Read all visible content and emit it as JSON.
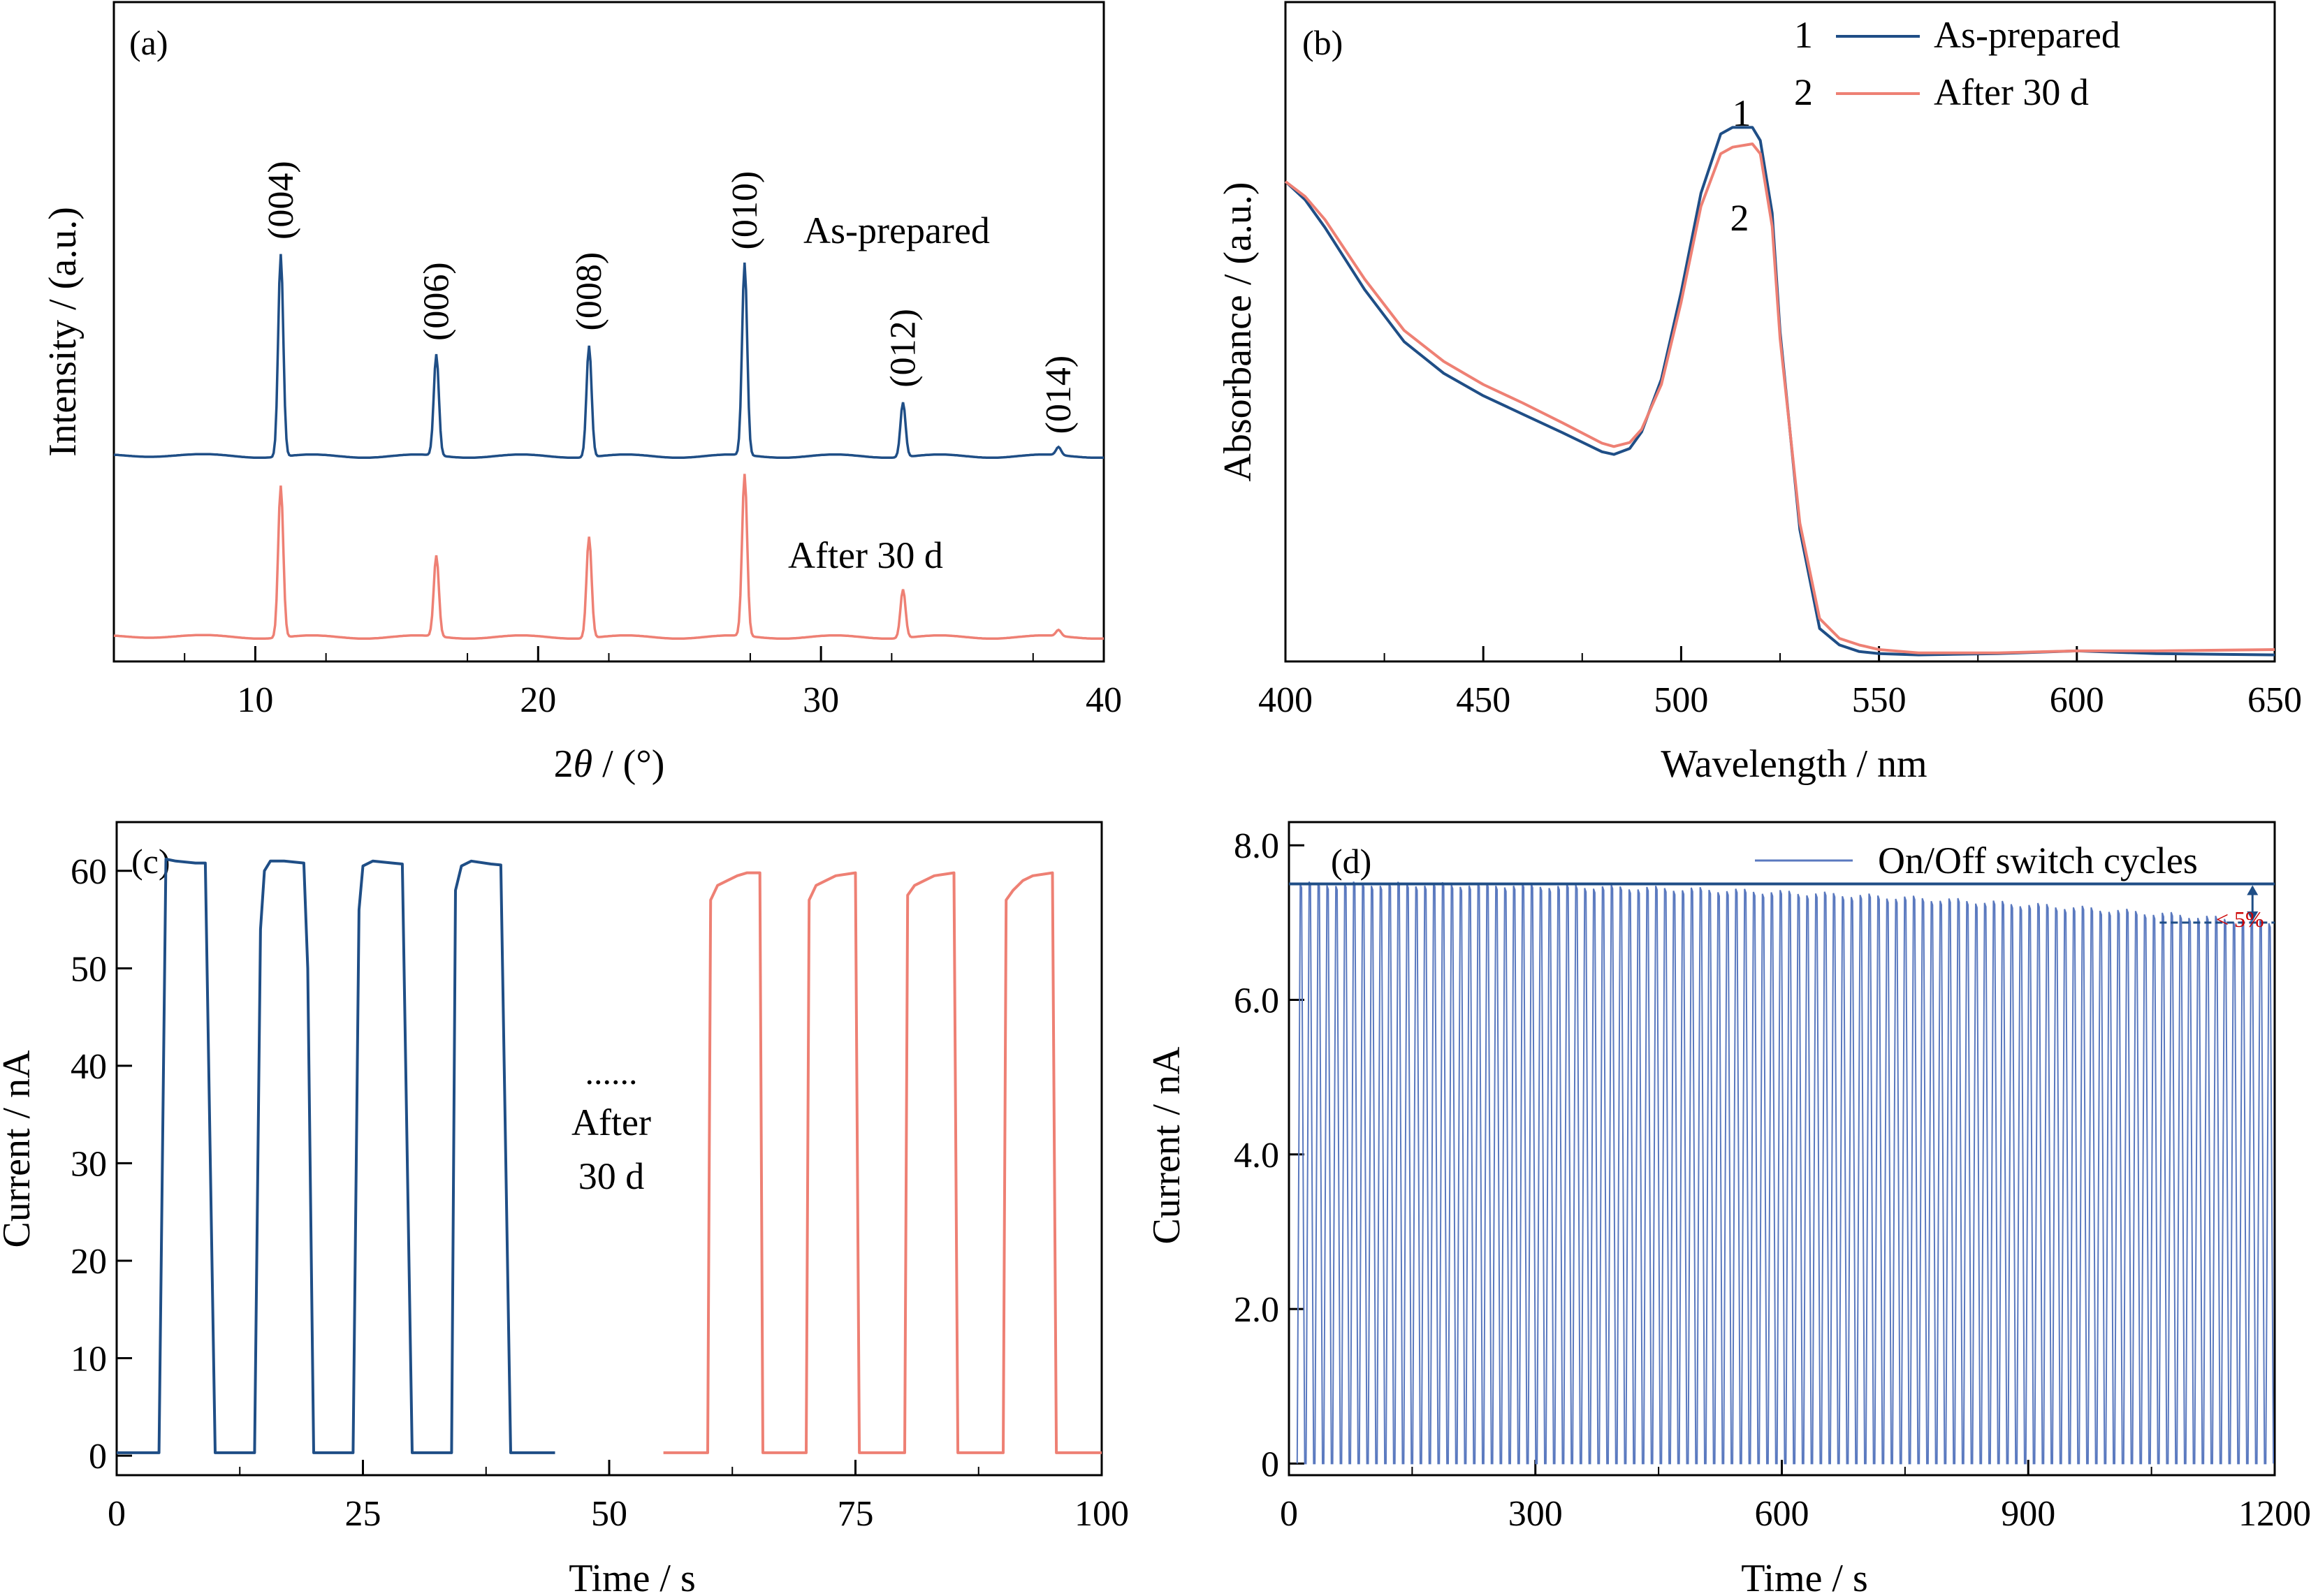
{
  "colors": {
    "as_prepared": "#1f4e86",
    "after_30d": "#ee8074",
    "annotation_red": "#cc0000",
    "axis": "#000000"
  },
  "chart_data": [
    {
      "panel": "(a)",
      "type": "line",
      "xlabel_prefix": "2",
      "xlabel_italic": "θ",
      "xlabel_suffix": " / (°)",
      "ylabel": "Intensity / (a.u.)",
      "xlim": [
        5,
        40
      ],
      "xticks": [
        10,
        20,
        30,
        40
      ],
      "y_ticks_shown": false,
      "series": [
        {
          "name": "As-prepared",
          "peaks_2theta": [
            10.9,
            16.4,
            21.8,
            27.3,
            32.9,
            38.4
          ],
          "peak_heights": [
            1.0,
            0.5,
            0.55,
            0.95,
            0.27,
            0.04
          ]
        },
        {
          "name": "After 30 d",
          "peaks_2theta": [
            10.9,
            16.4,
            21.8,
            27.3,
            32.9,
            38.4
          ],
          "peak_heights": [
            0.75,
            0.4,
            0.5,
            0.8,
            0.24,
            0.03
          ]
        }
      ],
      "peak_labels": [
        {
          "text": "(004)",
          "x": 10.9
        },
        {
          "text": "(006)",
          "x": 16.4
        },
        {
          "text": "(008)",
          "x": 21.8
        },
        {
          "text": "(010)",
          "x": 27.3
        },
        {
          "text": "(012)",
          "x": 32.9
        },
        {
          "text": "(014)",
          "x": 38.4
        }
      ]
    },
    {
      "panel": "(b)",
      "type": "line",
      "xlabel": "Wavelength / nm",
      "ylabel": "Absorbance / (a.u.)",
      "xlim": [
        400,
        650
      ],
      "ylim": [
        0,
        1
      ],
      "xticks": [
        400,
        450,
        500,
        550,
        600,
        650
      ],
      "y_ticks_shown": false,
      "legend": [
        {
          "num": "1",
          "name": "As-prepared"
        },
        {
          "num": "2",
          "name": "After 30 d"
        }
      ],
      "peak_markers": [
        "1",
        "2"
      ],
      "series": [
        {
          "name": "As-prepared",
          "x": [
            400,
            405,
            410,
            420,
            430,
            440,
            450,
            460,
            470,
            480,
            483,
            487,
            490,
            495,
            500,
            505,
            510,
            513,
            515,
            518,
            520,
            523,
            525,
            530,
            535,
            540,
            545,
            550,
            560,
            580,
            600,
            620,
            650
          ],
          "y": [
            0.728,
            0.7,
            0.658,
            0.564,
            0.485,
            0.437,
            0.403,
            0.375,
            0.347,
            0.318,
            0.314,
            0.323,
            0.348,
            0.428,
            0.56,
            0.71,
            0.8,
            0.81,
            0.81,
            0.81,
            0.79,
            0.68,
            0.5,
            0.2,
            0.05,
            0.025,
            0.015,
            0.012,
            0.01,
            0.012,
            0.016,
            0.012,
            0.01
          ]
        },
        {
          "name": "After 30 d",
          "x": [
            400,
            405,
            410,
            420,
            430,
            440,
            450,
            460,
            470,
            480,
            483,
            487,
            490,
            495,
            500,
            505,
            510,
            513,
            515,
            518,
            520,
            523,
            525,
            530,
            535,
            540,
            545,
            550,
            560,
            580,
            600,
            620,
            650
          ],
          "y": [
            0.728,
            0.705,
            0.67,
            0.58,
            0.502,
            0.455,
            0.42,
            0.392,
            0.362,
            0.331,
            0.326,
            0.332,
            0.352,
            0.42,
            0.545,
            0.69,
            0.77,
            0.78,
            0.782,
            0.785,
            0.77,
            0.66,
            0.49,
            0.21,
            0.065,
            0.035,
            0.025,
            0.018,
            0.013,
            0.013,
            0.016,
            0.016,
            0.018
          ]
        }
      ]
    },
    {
      "panel": "(c)",
      "type": "line",
      "xlabel": "Time / s",
      "ylabel": "Current / nA",
      "xlim": [
        0,
        100
      ],
      "ylim": [
        -2,
        65
      ],
      "xticks": [
        0,
        25,
        50,
        75,
        100
      ],
      "yticks": [
        0,
        10,
        20,
        30,
        40,
        50,
        60
      ],
      "annotation": {
        "dots": "......",
        "line1": "After",
        "line2": "30 d"
      },
      "series": [
        {
          "name": "As-prepared",
          "x": [
            0,
            4.3,
            5,
            6,
            8,
            9,
            10,
            14,
            14.6,
            15,
            15.6,
            17,
            19,
            19.4,
            20,
            24,
            24.6,
            25,
            26,
            28,
            29,
            30,
            34,
            34.4,
            35,
            36,
            38,
            39,
            40,
            44.5
          ],
          "y": [
            0.3,
            0.3,
            61.2,
            61,
            60.8,
            60.8,
            0.3,
            0.3,
            54,
            60,
            61,
            61,
            60.8,
            50,
            0.3,
            0.3,
            56,
            60.5,
            61,
            60.8,
            60.7,
            0.3,
            0.3,
            58,
            60.5,
            61,
            60.7,
            60.6,
            0.3,
            0.3
          ]
        },
        {
          "name": "After 30 d",
          "x": [
            55.5,
            60,
            60.3,
            61,
            62,
            63,
            64,
            65.3,
            65.6,
            70,
            70.3,
            71,
            72,
            73,
            75,
            75.4,
            80,
            80.3,
            81,
            82,
            83,
            85,
            85.4,
            90,
            90.3,
            91,
            92,
            93,
            95,
            95.4,
            100
          ],
          "y": [
            0.3,
            0.3,
            57,
            58.5,
            59,
            59.5,
            59.8,
            59.8,
            0.3,
            0.3,
            57,
            58.5,
            59,
            59.5,
            59.8,
            0.3,
            0.3,
            57.5,
            58.5,
            59,
            59.5,
            59.8,
            0.3,
            0.3,
            57,
            58,
            59,
            59.5,
            59.8,
            0.3,
            0.3
          ]
        }
      ]
    },
    {
      "panel": "(d)",
      "type": "line",
      "xlabel": "Time / s",
      "ylabel": "Current / nA",
      "xlim": [
        0,
        1200
      ],
      "ylim": [
        -0.15,
        8.3
      ],
      "xticks": [
        0,
        300,
        600,
        900,
        1200
      ],
      "yticks": [
        0,
        2,
        4,
        6,
        8
      ],
      "ytick_labels": [
        "0",
        "2.0",
        "4.0",
        "6.0",
        "8.0"
      ],
      "legend": "On/Off switch cycles",
      "cycles": 110,
      "on_current_start": 7.5,
      "on_current_end": 7.0,
      "reference_levels": [
        7.5,
        7.0
      ],
      "annotation": "< 5%"
    }
  ]
}
